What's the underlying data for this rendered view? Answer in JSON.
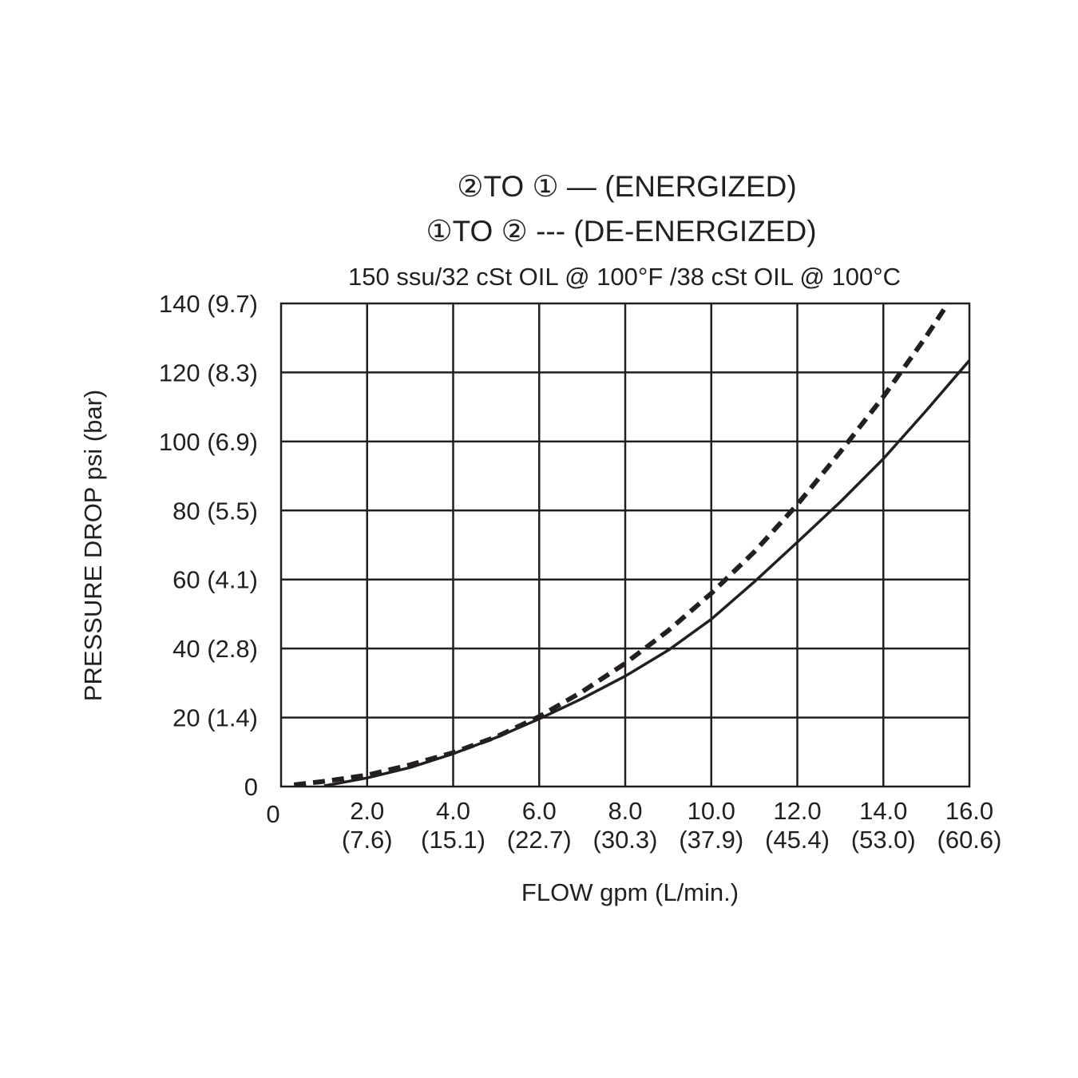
{
  "chart_data": {
    "type": "line",
    "title_lines": [
      "②TO ① — (ENERGIZED)",
      "①TO ② --- (DE-ENERGIZED)"
    ],
    "subtitle": "150 ssu/32 cSt OIL @ 100°F /38 cSt OIL @ 100°C",
    "xlabel": "FLOW gpm (L/min.)",
    "ylabel": "PRESSURE DROP psi (bar)",
    "xlim": [
      0,
      16
    ],
    "ylim": [
      0,
      140
    ],
    "grid": true,
    "x_ticks": [
      {
        "value": 0,
        "label": "0",
        "sub": ""
      },
      {
        "value": 2,
        "label": "2.0",
        "sub": "(7.6)"
      },
      {
        "value": 4,
        "label": "4.0",
        "sub": "(15.1)"
      },
      {
        "value": 6,
        "label": "6.0",
        "sub": "(22.7)"
      },
      {
        "value": 8,
        "label": "8.0",
        "sub": "(30.3)"
      },
      {
        "value": 10,
        "label": "10.0",
        "sub": "(37.9)"
      },
      {
        "value": 12,
        "label": "12.0",
        "sub": "(45.4)"
      },
      {
        "value": 14,
        "label": "14.0",
        "sub": "(53.0)"
      },
      {
        "value": 16,
        "label": "16.0",
        "sub": "(60.6)"
      }
    ],
    "y_ticks": [
      {
        "value": 0,
        "label": "0"
      },
      {
        "value": 20,
        "label": "20 (1.4)"
      },
      {
        "value": 40,
        "label": "40 (2.8)"
      },
      {
        "value": 60,
        "label": "60 (4.1)"
      },
      {
        "value": 80,
        "label": "80 (5.5)"
      },
      {
        "value": 100,
        "label": "100 (6.9)"
      },
      {
        "value": 120,
        "label": "120 (8.3)"
      },
      {
        "value": 140,
        "label": "140 (9.7)"
      }
    ],
    "series": [
      {
        "style": "solid",
        "color": "#231f20",
        "x": [
          1.0,
          2.0,
          3.0,
          4.0,
          5.0,
          6.0,
          7.0,
          8.0,
          9.0,
          10.0,
          11.0,
          12.0,
          13.0,
          14.0,
          15.0,
          16.0
        ],
        "y": [
          0.2,
          2.5,
          5.5,
          9.5,
          14.2,
          19.6,
          25.5,
          32.0,
          39.5,
          48.5,
          59.3,
          70.8,
          82.5,
          95.0,
          109.0,
          123.5
        ]
      },
      {
        "style": "dashed",
        "color": "#231f20",
        "x": [
          0.3,
          1.0,
          2.0,
          3.0,
          4.0,
          5.0,
          6.0,
          7.0,
          8.0,
          9.0,
          10.0,
          11.0,
          12.0,
          13.0,
          14.0,
          15.0,
          15.5
        ],
        "y": [
          0.5,
          1.5,
          3.3,
          6.3,
          9.8,
          14.4,
          20.3,
          27.5,
          35.7,
          45.2,
          56.0,
          68.0,
          81.7,
          97.0,
          113.0,
          130.5,
          140.0
        ]
      }
    ]
  }
}
